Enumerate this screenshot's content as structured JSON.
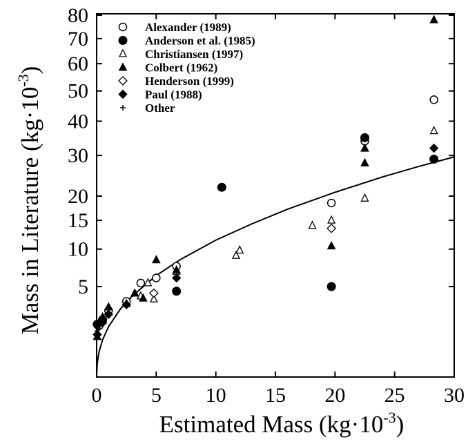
{
  "chart_data": {
    "type": "scatter",
    "xlabel": "Estimated Mass (kg·10",
    "xlabel_sup": "-3",
    "xlabel_close": ")",
    "ylabel": "Mass in Literature (kg·10",
    "ylabel_sup": "-3",
    "ylabel_close": ")",
    "xlim": [
      0,
      30
    ],
    "ylim": [
      1,
      80
    ],
    "y_scale": "sqrt",
    "grid": false,
    "legend_position": "top-left",
    "x_ticks": [
      "0",
      "5",
      "10",
      "15",
      "20",
      "25",
      "30"
    ],
    "y_ticks": [
      "5",
      "10",
      "15",
      "20",
      "30",
      "40",
      "50",
      "60",
      "70",
      "80"
    ],
    "series": [
      {
        "name": "Alexander (1989)",
        "marker": "open-circle",
        "points": [
          [
            0.2,
            1.6
          ],
          [
            0.5,
            2.0
          ],
          [
            1.0,
            2.7
          ],
          [
            2.5,
            3.5
          ],
          [
            3.7,
            5.4
          ],
          [
            5.0,
            6.0
          ],
          [
            6.7,
            7.5
          ],
          [
            19.7,
            18.5
          ],
          [
            22.5,
            34.0
          ],
          [
            28.3,
            47.0
          ]
        ]
      },
      {
        "name": "Anderson et al. (1985)",
        "marker": "filled-circle",
        "points": [
          [
            0.05,
            1.7
          ],
          [
            0.5,
            2.0
          ],
          [
            6.7,
            4.5
          ],
          [
            10.5,
            22.0
          ],
          [
            19.7,
            5.0
          ],
          [
            22.5,
            35.0
          ],
          [
            28.3,
            29.0
          ]
        ]
      },
      {
        "name": "Christiansen (1997)",
        "marker": "open-triangle",
        "points": [
          [
            3.7,
            4.0
          ],
          [
            4.3,
            5.4
          ],
          [
            4.8,
            3.7
          ],
          [
            6.7,
            6.8
          ],
          [
            11.7,
            9.0
          ],
          [
            12.0,
            9.8
          ],
          [
            18.1,
            14.0
          ],
          [
            19.7,
            15.0
          ],
          [
            22.5,
            19.5
          ],
          [
            28.3,
            37.0
          ]
        ]
      },
      {
        "name": "Colbert (1962)",
        "marker": "filled-triangle",
        "points": [
          [
            0.05,
            1.0
          ],
          [
            0.5,
            2.2
          ],
          [
            1.0,
            3.0
          ],
          [
            2.5,
            3.3
          ],
          [
            3.2,
            4.3
          ],
          [
            3.9,
            3.8
          ],
          [
            5.0,
            8.4
          ],
          [
            6.7,
            7.0
          ],
          [
            19.7,
            10.5
          ],
          [
            22.5,
            28.0
          ],
          [
            22.5,
            32.0
          ],
          [
            28.3,
            78.0
          ]
        ]
      },
      {
        "name": "Henderson (1999)",
        "marker": "open-diamond",
        "points": [
          [
            4.8,
            4.3
          ],
          [
            19.7,
            13.5
          ]
        ]
      },
      {
        "name": "Paul (1988)",
        "marker": "filled-diamond",
        "points": [
          [
            0.05,
            1.1
          ],
          [
            0.5,
            1.8
          ],
          [
            1.0,
            2.4
          ],
          [
            2.5,
            3.2
          ],
          [
            6.7,
            6.0
          ],
          [
            28.3,
            32.0
          ]
        ]
      },
      {
        "name": "Other",
        "marker": "plus",
        "points": [
          [
            0.05,
            1.3
          ],
          [
            0.1,
            1.45
          ],
          [
            0.3,
            1.9
          ]
        ]
      }
    ],
    "fit_curve": {
      "formula": "y = 1.55 * x^0.87 (fitted line)",
      "x": [
        0.001,
        0.05,
        0.2,
        0.5,
        1,
        2,
        3,
        5,
        7,
        10,
        13,
        16,
        20,
        24,
        27,
        30
      ],
      "y": [
        0.0,
        0.115,
        0.38,
        0.85,
        1.55,
        2.84,
        4.02,
        6.29,
        8.41,
        11.45,
        14.31,
        17.19,
        20.85,
        24.48,
        27.07,
        29.6
      ]
    }
  }
}
